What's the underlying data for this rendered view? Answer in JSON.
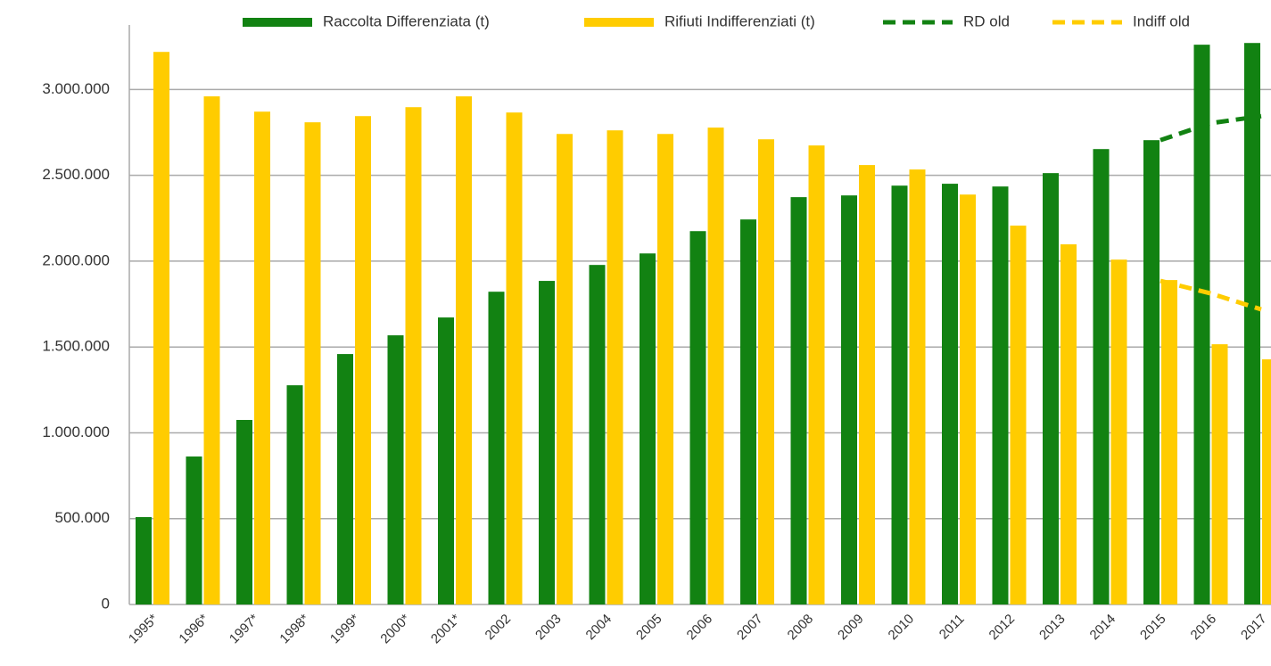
{
  "chart_data": {
    "type": "bar",
    "categories": [
      "1995*",
      "1996*",
      "1997*",
      "1998*",
      "1999*",
      "2000*",
      "2001*",
      "2002",
      "2003",
      "2004",
      "2005",
      "2006",
      "2007",
      "2008",
      "2009",
      "2010",
      "2011",
      "2012",
      "2013",
      "2014",
      "2015",
      "2016",
      "2017"
    ],
    "series": [
      {
        "name": "Raccolta Differenziata (t)",
        "type": "bar",
        "color": "#128212",
        "values": [
          509000,
          862000,
          1075000,
          1277000,
          1459000,
          1568000,
          1672000,
          1822000,
          1885000,
          1978000,
          2045000,
          2175000,
          2243000,
          2373000,
          2383000,
          2440000,
          2451000,
          2435000,
          2513000,
          2653000,
          2705000,
          3261000,
          3271000
        ]
      },
      {
        "name": "Rifiuti Indifferenziati (t)",
        "type": "bar",
        "color": "#ffcc00",
        "values": [
          3219000,
          2960000,
          2871000,
          2809000,
          2845000,
          2897000,
          2960000,
          2866000,
          2741000,
          2762000,
          2741000,
          2778000,
          2710000,
          2674000,
          2560000,
          2534000,
          2388000,
          2207000,
          2098000,
          2009000,
          1890000,
          1516000,
          1428000
        ]
      },
      {
        "name": "RD old",
        "type": "line",
        "dashed": true,
        "color": "#128212",
        "values": [
          null,
          null,
          null,
          null,
          null,
          null,
          null,
          null,
          null,
          null,
          null,
          null,
          null,
          null,
          null,
          null,
          null,
          null,
          null,
          null,
          2705000,
          2804000,
          2845000
        ]
      },
      {
        "name": "Indiff old",
        "type": "line",
        "dashed": true,
        "color": "#ffcc00",
        "values": [
          null,
          null,
          null,
          null,
          null,
          null,
          null,
          null,
          null,
          null,
          null,
          null,
          null,
          null,
          null,
          null,
          null,
          null,
          null,
          null,
          1885000,
          1812000,
          1719000
        ]
      }
    ],
    "ylim": [
      0,
      3350000
    ],
    "yticks": [
      0,
      {
        "value": 500000,
        "label": "500.000"
      },
      {
        "value": 1000000,
        "label": "1.000.000"
      },
      {
        "value": 1500000,
        "label": "1.500.000"
      },
      {
        "value": 2000000,
        "label": "2.000.000"
      },
      {
        "value": 2500000,
        "label": "2.500.000"
      },
      {
        "value": 3000000,
        "label": "3.000.000"
      }
    ],
    "grid": true,
    "legend": "top"
  }
}
